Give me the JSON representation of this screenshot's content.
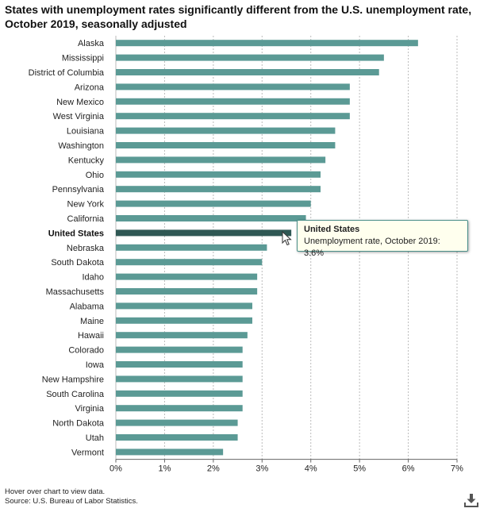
{
  "title": "States with unemployment rates significantly different from the U.S. unemployment rate, October 2019, seasonally adjusted",
  "tooltip": {
    "title": "United States",
    "text": "Unemployment rate, October 2019: 3.6%"
  },
  "footnotes": {
    "hover": "Hover over chart to view data.",
    "source": "Source: U.S. Bureau of Labor Statistics."
  },
  "icons": {
    "download": "download-icon",
    "cursor": "mouse-pointer-icon"
  },
  "colors": {
    "bar": "#5b9a95",
    "highlight": "#2f5854",
    "grid": "#bbbbbb"
  },
  "chart_data": {
    "type": "bar",
    "orientation": "horizontal",
    "categories": [
      "Alaska",
      "Mississippi",
      "District of Columbia",
      "Arizona",
      "New Mexico",
      "West Virginia",
      "Louisiana",
      "Washington",
      "Kentucky",
      "Ohio",
      "Pennsylvania",
      "New York",
      "California",
      "United States",
      "Nebraska",
      "South Dakota",
      "Idaho",
      "Massachusetts",
      "Alabama",
      "Maine",
      "Hawaii",
      "Colorado",
      "Iowa",
      "New Hampshire",
      "South Carolina",
      "Virginia",
      "North Dakota",
      "Utah",
      "Vermont"
    ],
    "values": [
      6.2,
      5.5,
      5.4,
      4.8,
      4.8,
      4.8,
      4.5,
      4.5,
      4.3,
      4.2,
      4.2,
      4.0,
      3.9,
      3.6,
      3.1,
      3.0,
      2.9,
      2.9,
      2.8,
      2.8,
      2.7,
      2.6,
      2.6,
      2.6,
      2.6,
      2.6,
      2.5,
      2.5,
      2.2
    ],
    "highlight": "United States",
    "xlim": [
      0,
      7
    ],
    "xticks": [
      "0%",
      "1%",
      "2%",
      "3%",
      "4%",
      "5%",
      "6%",
      "7%"
    ],
    "grid": "vertical dashed"
  }
}
